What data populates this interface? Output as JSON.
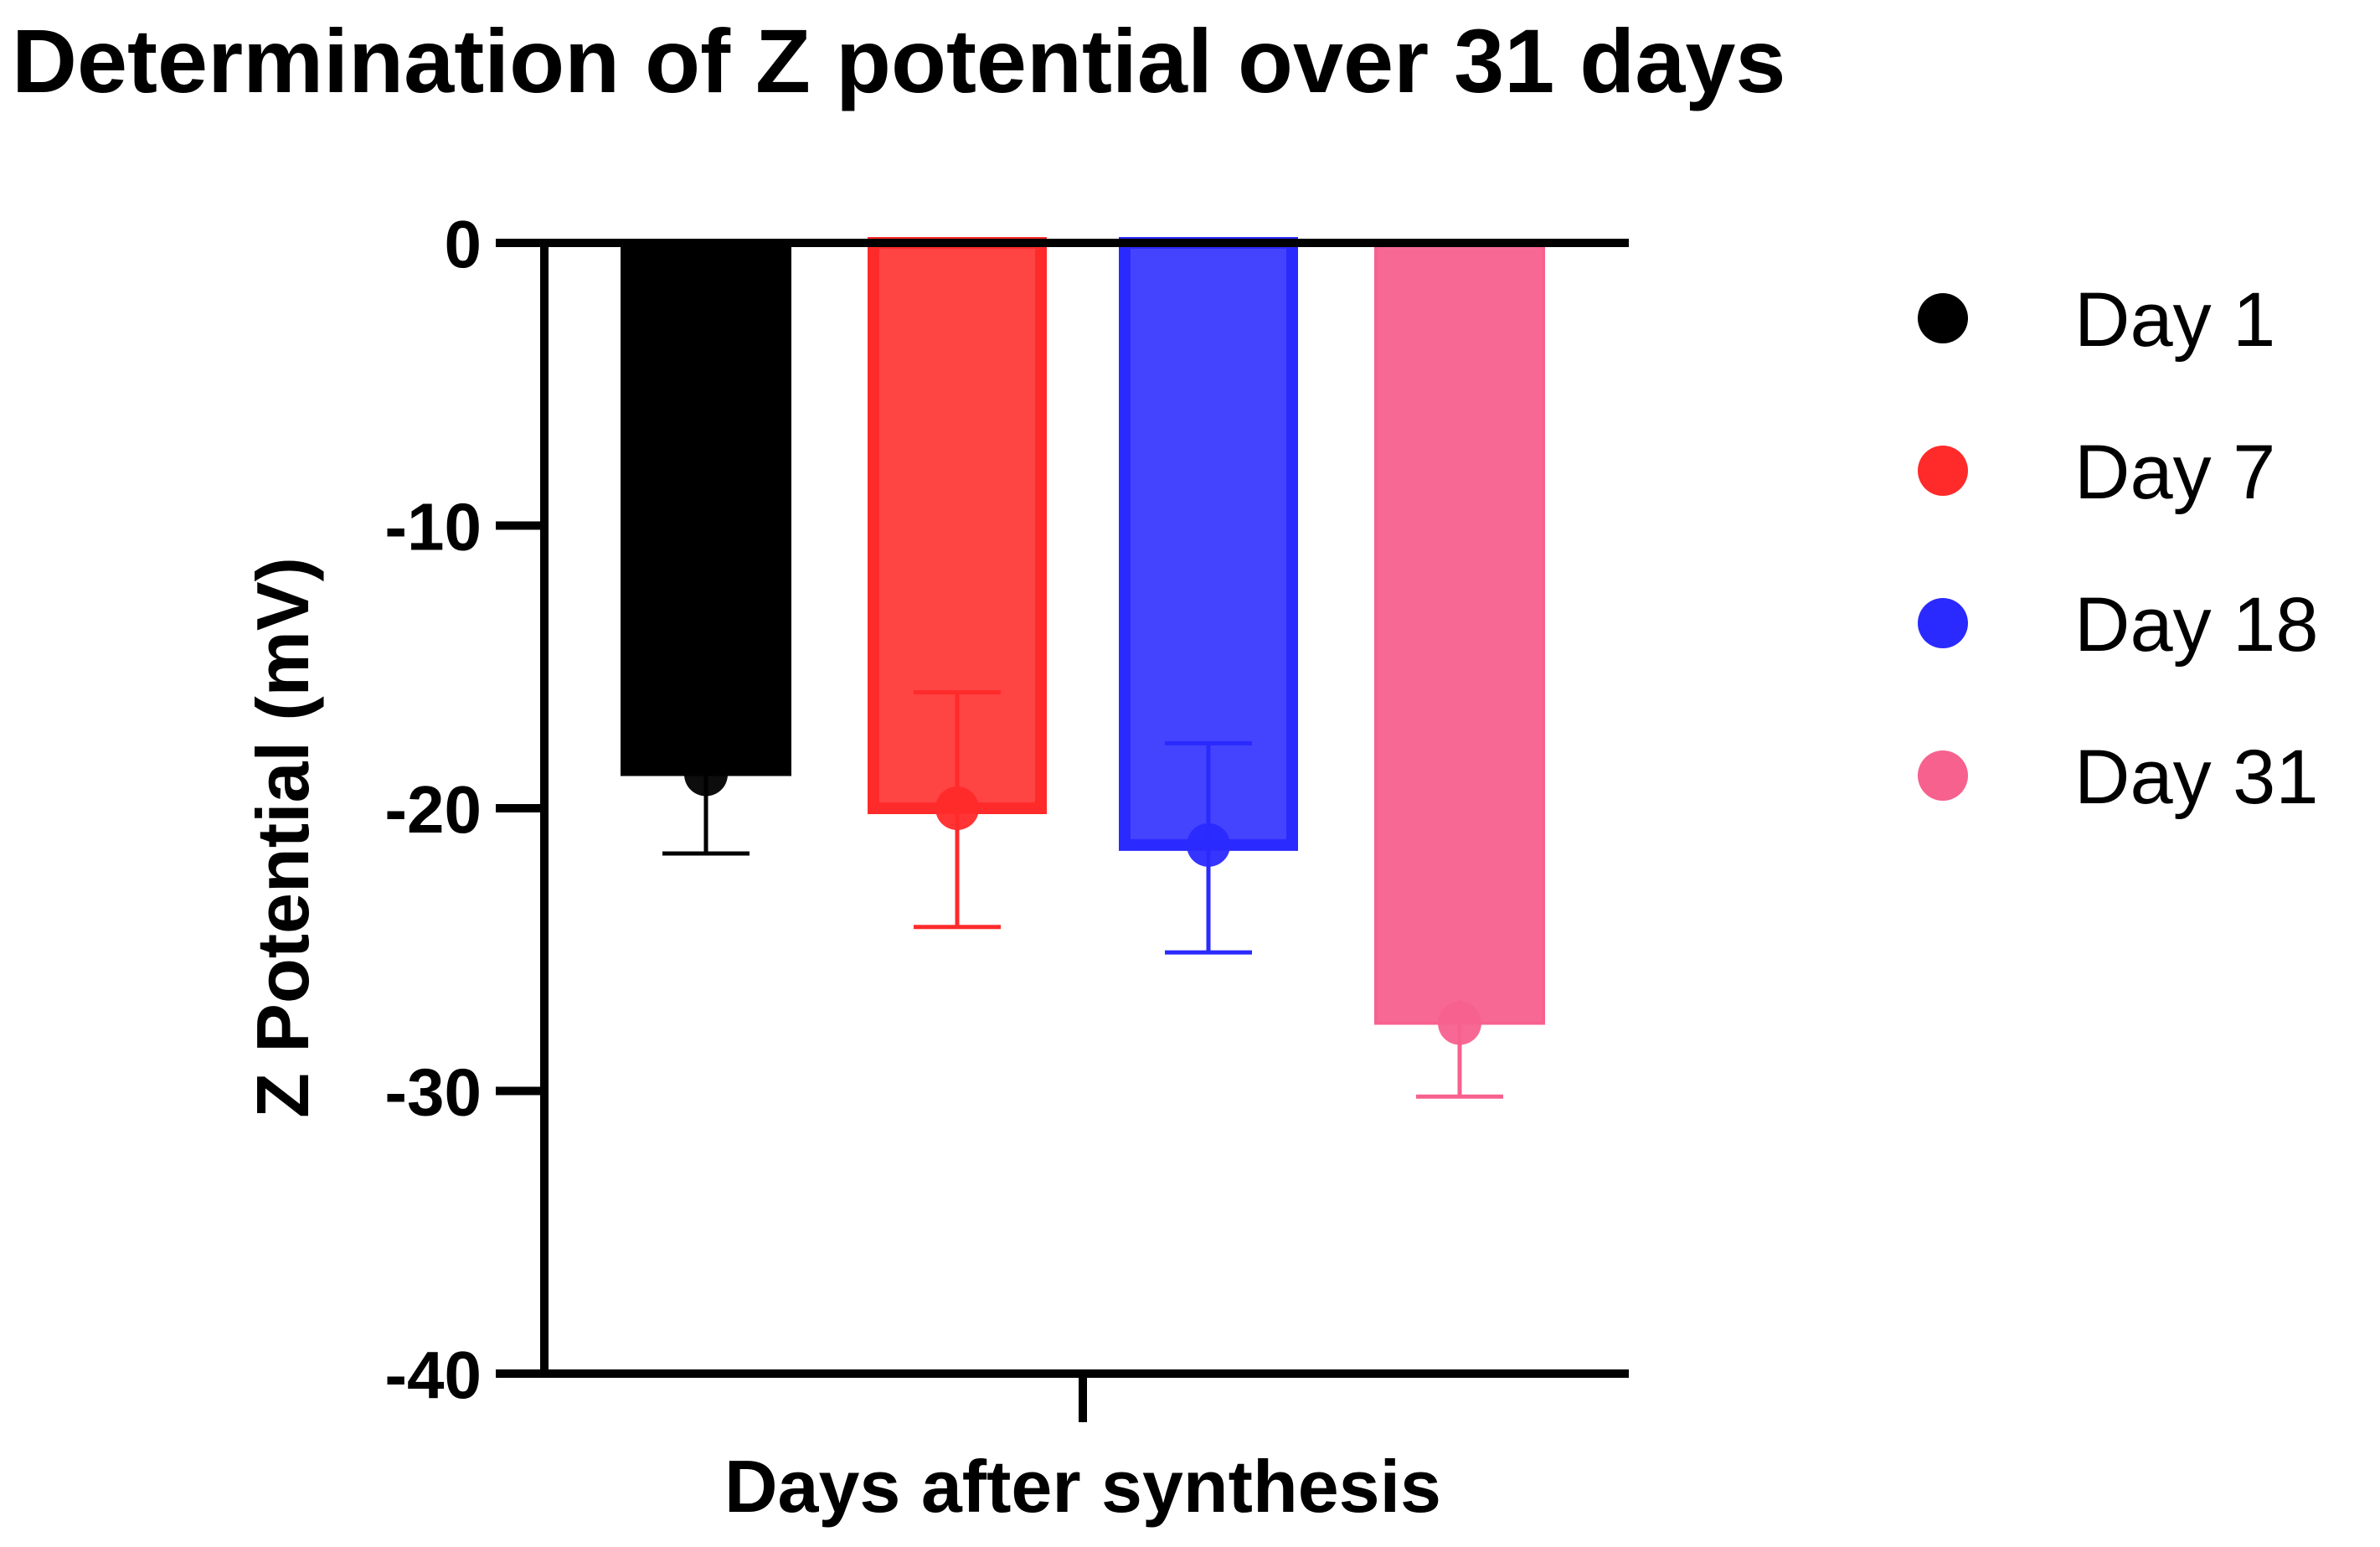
{
  "chart_data": {
    "type": "bar",
    "title": "Determination of Z potential over 31 days",
    "xlabel": "Days after synthesis",
    "ylabel": "Z Potential (mV)",
    "ylim": [
      -40,
      0
    ],
    "yticks": [
      0,
      -10,
      -20,
      -30,
      -40
    ],
    "ytick_labels": [
      "0",
      "-10",
      "-20",
      "-30",
      "-40"
    ],
    "categories": [
      "Day 1",
      "Day 7",
      "Day 18",
      "Day 31"
    ],
    "values": [
      -18.8,
      -20.0,
      -21.3,
      -27.6
    ],
    "error_upper": [
      1.5,
      4.1,
      3.6,
      0.8
    ],
    "error_lower": [
      2.8,
      4.2,
      3.8,
      2.6
    ],
    "colors": [
      "#000000",
      "#ff2a2a",
      "#2a2aff",
      "#f7618e"
    ],
    "legend": [
      {
        "label": "Day 1",
        "color": "#000000"
      },
      {
        "label": "Day 7",
        "color": "#ff2a2a"
      },
      {
        "label": "Day 18",
        "color": "#2a2aff"
      },
      {
        "label": "Day 31",
        "color": "#f7618e"
      }
    ],
    "legend_position": "right",
    "grid": false
  }
}
